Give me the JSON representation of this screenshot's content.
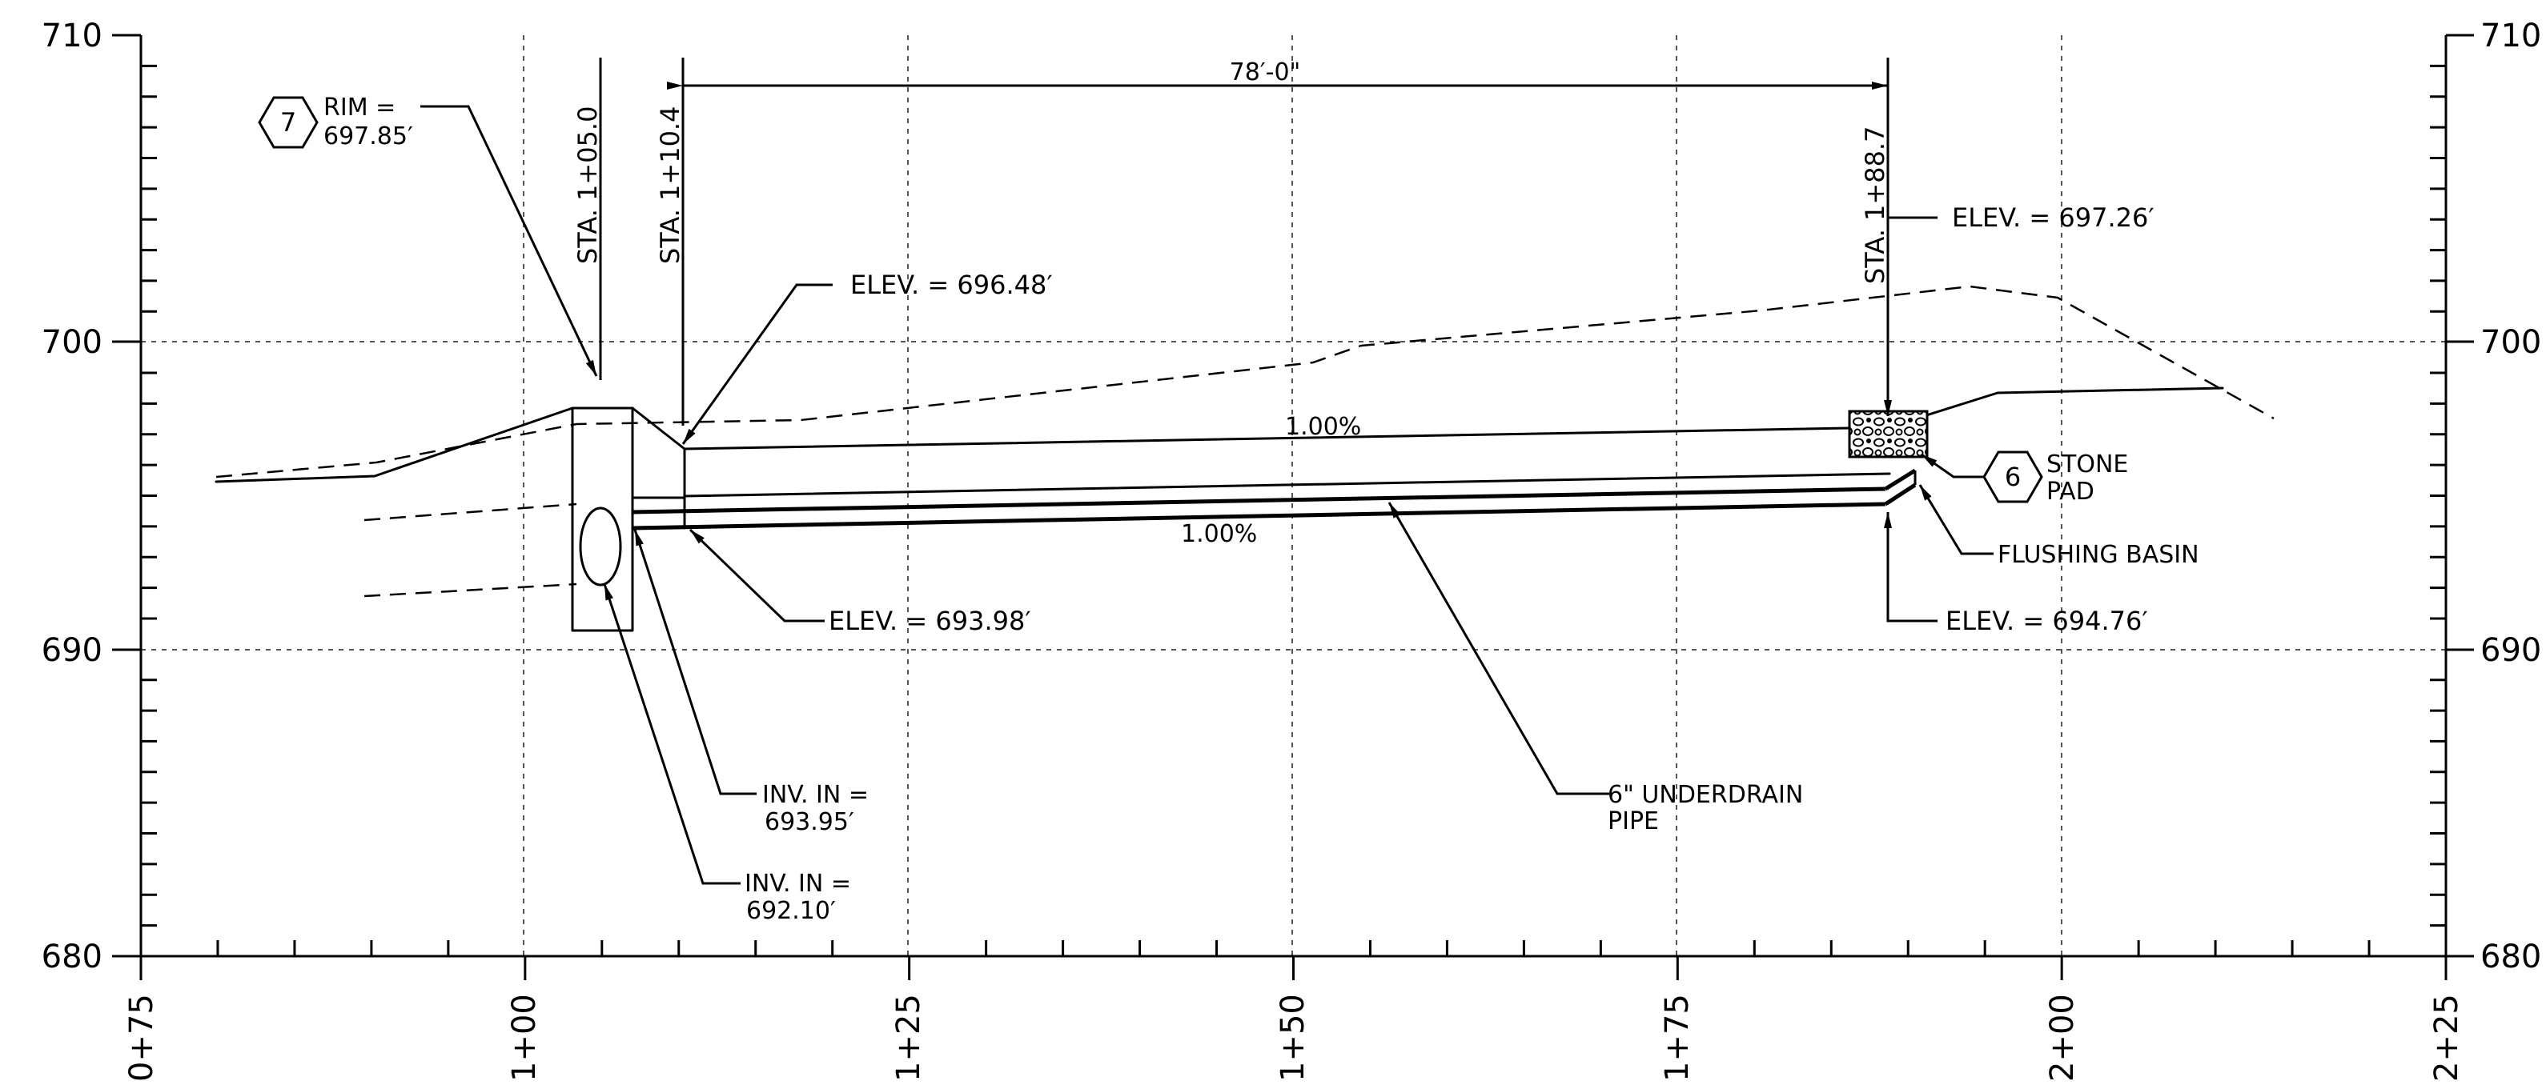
{
  "axes": {
    "elevation_left": [
      "710",
      "700",
      "690",
      "680"
    ],
    "elevation_right": [
      "710",
      "700",
      "690",
      "680"
    ],
    "stations": [
      "0+75",
      "1+00",
      "1+25",
      "1+50",
      "1+75",
      "2+00",
      "2+25"
    ]
  },
  "dimension": "78′-0\"",
  "stations": {
    "a": "STA. 1+05.0",
    "b": "STA. 1+10.4",
    "c": "STA. 1+88.7"
  },
  "rim": {
    "number": "7",
    "line1": "RIM =",
    "line2": "697.85′"
  },
  "stone_pad": {
    "number": "6",
    "line1": "STONE",
    "line2": "PAD"
  },
  "callouts": {
    "elev_top_left": "ELEV. = 696.48′",
    "elev_bottom_left": "ELEV. = 693.98′",
    "elev_top_right": "ELEV. = 697.26′",
    "elev_bottom_right": "ELEV. = 694.76′",
    "flushing_basin": "FLUSHING BASIN",
    "underdrain_line1": "6\" UNDERDRAIN",
    "underdrain_line2": "PIPE",
    "inv1_line1": "INV. IN =",
    "inv1_line2": "693.95′",
    "inv2_line1": "INV. IN =",
    "inv2_line2": "692.10′"
  },
  "slopes": {
    "upper": "1.00%",
    "lower": "1.00%"
  }
}
